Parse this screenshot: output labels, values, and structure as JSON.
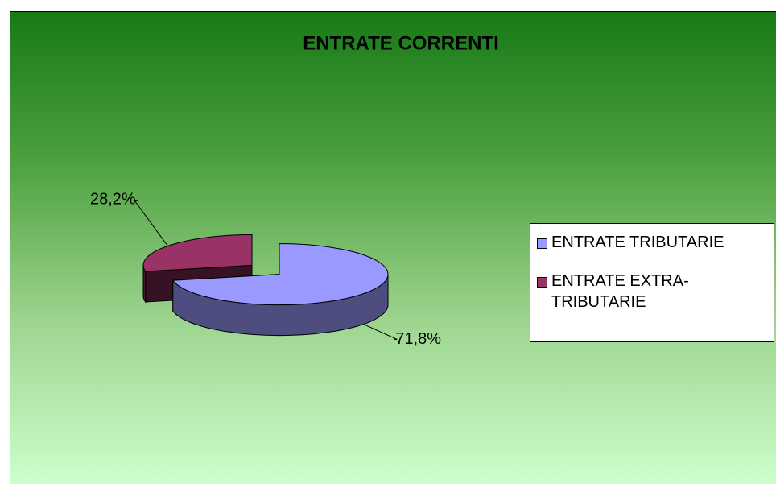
{
  "chart_data": {
    "type": "pie",
    "title": "ENTRATE CORRENTI",
    "categories": [
      "ENTRATE TRIBUTARIE",
      "ENTRATE EXTRA-TRIBUTARIE"
    ],
    "values": [
      71.8,
      28.2
    ],
    "value_labels": [
      "71,8%",
      "28,2%"
    ],
    "colors": [
      "#9999ff",
      "#993366"
    ],
    "legend": "right"
  }
}
